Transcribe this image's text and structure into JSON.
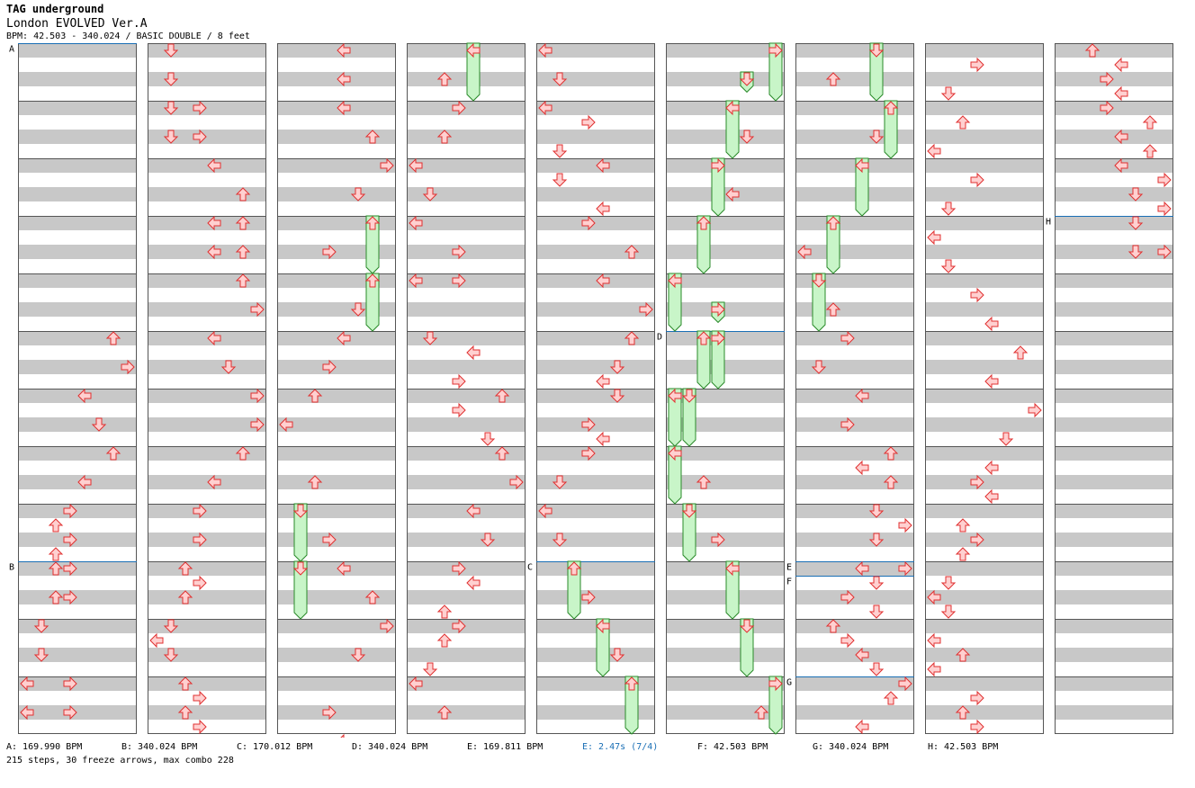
{
  "header": {
    "artist": "TAG underground",
    "title": "London EVOLVED Ver.A",
    "info": "BPM: 42.503 - 340.024 / BASIC DOUBLE / 8 feet"
  },
  "legend": [
    {
      "text": "A: 169.990 BPM",
      "highlight": false
    },
    {
      "text": "B: 340.024 BPM",
      "highlight": false
    },
    {
      "text": "C: 170.012 BPM",
      "highlight": false
    },
    {
      "text": "D: 340.024 BPM",
      "highlight": false
    },
    {
      "text": "E: 169.811 BPM",
      "highlight": false
    },
    {
      "text": "E: 2.47s (7/4)",
      "highlight": true
    },
    {
      "text": "F: 42.503 BPM",
      "highlight": false
    },
    {
      "text": "G: 340.024 BPM",
      "highlight": false
    },
    {
      "text": "H: 42.503 BPM",
      "highlight": false
    }
  ],
  "summary": "215 steps, 30 freeze arrows, max combo 228",
  "colors": {
    "band": "#c8c8c8",
    "border": "#555555",
    "marker": "#1a6fb5",
    "arrow_fill": "#ffd0d0",
    "arrow_stroke": "#e03030",
    "freeze_fill": "#c8f5c8",
    "freeze_stroke": "#2a8a2a"
  },
  "chart": {
    "columns": 9,
    "measures_per_column": 12,
    "lanes": [
      "L1",
      "D1",
      "U1",
      "R1",
      "L2",
      "D2",
      "U2",
      "R2"
    ],
    "markers": [
      {
        "label": "A",
        "col": 0,
        "pos": 0
      },
      {
        "label": "B",
        "col": 0,
        "pos": 9
      },
      {
        "label": "C",
        "col": 4,
        "pos": 9
      },
      {
        "label": "D",
        "col": 5,
        "pos": 5
      },
      {
        "label": "E",
        "col": 6,
        "pos": 9
      },
      {
        "label": "F",
        "col": 6,
        "pos": 9.25
      },
      {
        "label": "G",
        "col": 6,
        "pos": 11
      },
      {
        "label": "H",
        "col": 8,
        "pos": 3
      }
    ],
    "steps": [
      [
        0,
        5.0,
        6
      ],
      [
        0,
        5.5,
        7
      ],
      [
        0,
        6.0,
        4
      ],
      [
        0,
        6.5,
        5
      ],
      [
        0,
        7.0,
        6
      ],
      [
        0,
        7.5,
        4
      ],
      [
        0,
        8.0,
        3
      ],
      [
        0,
        8.25,
        2
      ],
      [
        0,
        8.5,
        3
      ],
      [
        0,
        8.75,
        2
      ],
      [
        0,
        9.0,
        2
      ],
      [
        0,
        9.0,
        3
      ],
      [
        0,
        9.5,
        2
      ],
      [
        0,
        9.5,
        3
      ],
      [
        0,
        10.0,
        1
      ],
      [
        0,
        10.5,
        1
      ],
      [
        0,
        11.0,
        0
      ],
      [
        0,
        11.0,
        3
      ],
      [
        0,
        11.5,
        0
      ],
      [
        0,
        11.5,
        3
      ],
      [
        1,
        0.0,
        1
      ],
      [
        1,
        0.5,
        1
      ],
      [
        1,
        1.0,
        1
      ],
      [
        1,
        1.0,
        3
      ],
      [
        1,
        1.5,
        1
      ],
      [
        1,
        1.5,
        3
      ],
      [
        1,
        2.0,
        4
      ],
      [
        1,
        2.5,
        6
      ],
      [
        1,
        3.0,
        4
      ],
      [
        1,
        3.0,
        6
      ],
      [
        1,
        3.5,
        4
      ],
      [
        1,
        3.5,
        6
      ],
      [
        1,
        4.0,
        6
      ],
      [
        1,
        4.5,
        7
      ],
      [
        1,
        5.0,
        4
      ],
      [
        1,
        5.5,
        5
      ],
      [
        1,
        6.0,
        7
      ],
      [
        1,
        6.5,
        7
      ],
      [
        1,
        7.0,
        6
      ],
      [
        1,
        7.5,
        4
      ],
      [
        1,
        8.0,
        3
      ],
      [
        1,
        8.5,
        3
      ],
      [
        1,
        9.0,
        2
      ],
      [
        1,
        9.25,
        3
      ],
      [
        1,
        9.5,
        2
      ],
      [
        1,
        10.0,
        1
      ],
      [
        1,
        10.25,
        0
      ],
      [
        1,
        10.5,
        1
      ],
      [
        1,
        11.0,
        2
      ],
      [
        1,
        11.25,
        3
      ],
      [
        1,
        11.5,
        2
      ],
      [
        1,
        11.75,
        3
      ],
      [
        2,
        0.0,
        4
      ],
      [
        2,
        0.5,
        4
      ],
      [
        2,
        1.0,
        4
      ],
      [
        2,
        1.5,
        6
      ],
      [
        2,
        2.0,
        7
      ],
      [
        2,
        2.5,
        5
      ],
      [
        2,
        3.5,
        3
      ],
      [
        2,
        4.5,
        5
      ],
      [
        2,
        5.0,
        4
      ],
      [
        2,
        5.5,
        3
      ],
      [
        2,
        6.0,
        2
      ],
      [
        2,
        6.5,
        0
      ],
      [
        2,
        7.5,
        2
      ],
      [
        2,
        8.5,
        3
      ],
      [
        2,
        9.0,
        4
      ],
      [
        2,
        9.5,
        6
      ],
      [
        2,
        10.0,
        7
      ],
      [
        2,
        10.5,
        5
      ],
      [
        2,
        11.5,
        3
      ],
      [
        3,
        0.5,
        2
      ],
      [
        3,
        1.0,
        3
      ],
      [
        3,
        1.5,
        2
      ],
      [
        3,
        2.0,
        0
      ],
      [
        3,
        2.5,
        1
      ],
      [
        3,
        3.0,
        0
      ],
      [
        3,
        3.5,
        3
      ],
      [
        3,
        4.0,
        0
      ],
      [
        3,
        4.0,
        3
      ],
      [
        3,
        5.0,
        1
      ],
      [
        3,
        5.25,
        4
      ],
      [
        3,
        5.75,
        3
      ],
      [
        3,
        6.0,
        6
      ],
      [
        3,
        6.25,
        3
      ],
      [
        3,
        6.75,
        5
      ],
      [
        3,
        7.0,
        6
      ],
      [
        3,
        7.5,
        7
      ],
      [
        3,
        8.0,
        4
      ],
      [
        3,
        8.5,
        5
      ],
      [
        3,
        9.0,
        3
      ],
      [
        3,
        9.25,
        4
      ],
      [
        3,
        9.75,
        2
      ],
      [
        3,
        10.0,
        3
      ],
      [
        3,
        10.25,
        2
      ],
      [
        3,
        10.75,
        1
      ],
      [
        3,
        11.0,
        0
      ],
      [
        3,
        11.5,
        2
      ],
      [
        4,
        0.0,
        0
      ],
      [
        4,
        0.5,
        1
      ],
      [
        4,
        1.0,
        0
      ],
      [
        4,
        1.25,
        3
      ],
      [
        4,
        1.75,
        1
      ],
      [
        4,
        2.0,
        4
      ],
      [
        4,
        2.25,
        1
      ],
      [
        4,
        2.75,
        4
      ],
      [
        4,
        3.0,
        3
      ],
      [
        4,
        3.5,
        6
      ],
      [
        4,
        4.0,
        4
      ],
      [
        4,
        4.5,
        7
      ],
      [
        4,
        5.0,
        6
      ],
      [
        4,
        5.5,
        5
      ],
      [
        4,
        5.75,
        4
      ],
      [
        4,
        6.0,
        5
      ],
      [
        4,
        6.5,
        3
      ],
      [
        4,
        6.75,
        4
      ],
      [
        4,
        7.0,
        3
      ],
      [
        4,
        7.5,
        1
      ],
      [
        4,
        8.0,
        0
      ],
      [
        4,
        8.5,
        1
      ],
      [
        4,
        9.5,
        3
      ],
      [
        4,
        10.5,
        5
      ],
      [
        5,
        1.5,
        5
      ],
      [
        5,
        2.5,
        4
      ],
      [
        5,
        5.0,
        3
      ],
      [
        5,
        7.5,
        2
      ],
      [
        5,
        8.5,
        3
      ],
      [
        5,
        11.5,
        6
      ],
      [
        6,
        0.5,
        2
      ],
      [
        6,
        1.5,
        5
      ],
      [
        6,
        3.5,
        0
      ],
      [
        6,
        4.5,
        2
      ],
      [
        6,
        5.0,
        3
      ],
      [
        6,
        5.5,
        1
      ],
      [
        6,
        6.0,
        4
      ],
      [
        6,
        6.5,
        3
      ],
      [
        6,
        7.0,
        6
      ],
      [
        6,
        7.25,
        4
      ],
      [
        6,
        7.5,
        6
      ],
      [
        6,
        8.0,
        5
      ],
      [
        6,
        8.25,
        7
      ],
      [
        6,
        8.5,
        5
      ],
      [
        6,
        9.0,
        4
      ],
      [
        6,
        9.0,
        7
      ],
      [
        6,
        9.25,
        5
      ],
      [
        6,
        9.5,
        3
      ],
      [
        6,
        9.75,
        5
      ],
      [
        6,
        10.0,
        2
      ],
      [
        6,
        10.25,
        3
      ],
      [
        6,
        10.5,
        4
      ],
      [
        6,
        10.75,
        5
      ],
      [
        6,
        11.0,
        7
      ],
      [
        6,
        11.25,
        6
      ],
      [
        6,
        11.75,
        4
      ],
      [
        7,
        0.25,
        3
      ],
      [
        7,
        0.75,
        1
      ],
      [
        7,
        1.25,
        2
      ],
      [
        7,
        1.75,
        0
      ],
      [
        7,
        2.25,
        3
      ],
      [
        7,
        2.75,
        1
      ],
      [
        7,
        3.25,
        0
      ],
      [
        7,
        3.75,
        1
      ],
      [
        7,
        4.25,
        3
      ],
      [
        7,
        4.75,
        4
      ],
      [
        7,
        5.25,
        6
      ],
      [
        7,
        5.75,
        4
      ],
      [
        7,
        6.25,
        7
      ],
      [
        7,
        6.75,
        5
      ],
      [
        7,
        7.25,
        4
      ],
      [
        7,
        7.5,
        3
      ],
      [
        7,
        7.75,
        4
      ],
      [
        7,
        8.25,
        2
      ],
      [
        7,
        8.5,
        3
      ],
      [
        7,
        8.75,
        2
      ],
      [
        7,
        9.25,
        1
      ],
      [
        7,
        9.5,
        0
      ],
      [
        7,
        9.75,
        1
      ],
      [
        7,
        10.25,
        0
      ],
      [
        7,
        10.75,
        0
      ],
      [
        7,
        10.5,
        2
      ],
      [
        7,
        11.25,
        3
      ],
      [
        7,
        11.5,
        2
      ],
      [
        7,
        11.75,
        3
      ],
      [
        8,
        0.0,
        2
      ],
      [
        8,
        0.25,
        4
      ],
      [
        8,
        0.5,
        3
      ],
      [
        8,
        0.75,
        4
      ],
      [
        8,
        1.0,
        3
      ],
      [
        8,
        1.25,
        6
      ],
      [
        8,
        1.5,
        4
      ],
      [
        8,
        1.75,
        6
      ],
      [
        8,
        2.0,
        4
      ],
      [
        8,
        2.25,
        7
      ],
      [
        8,
        2.5,
        5
      ],
      [
        8,
        2.75,
        7
      ],
      [
        8,
        3.0,
        5
      ],
      [
        8,
        3.5,
        5
      ],
      [
        8,
        3.5,
        7
      ]
    ],
    "freezes": [
      [
        2,
        3.0,
        4.0,
        6
      ],
      [
        2,
        4.0,
        5.0,
        6
      ],
      [
        2,
        8.0,
        9.0,
        1
      ],
      [
        2,
        9.0,
        10.0,
        1
      ],
      [
        2,
        12.0,
        12.0,
        4
      ],
      [
        3,
        0.0,
        1.0,
        4
      ],
      [
        4,
        9.0,
        10.0,
        2
      ],
      [
        4,
        10.0,
        11.0,
        4
      ],
      [
        4,
        11.0,
        12.0,
        6
      ],
      [
        5,
        0.0,
        1.0,
        7
      ],
      [
        5,
        0.5,
        0.85,
        5
      ],
      [
        5,
        1.0,
        2.0,
        4
      ],
      [
        5,
        2.0,
        3.0,
        3
      ],
      [
        5,
        3.0,
        4.0,
        2
      ],
      [
        5,
        4.0,
        5.0,
        0
      ],
      [
        5,
        4.5,
        4.85,
        3
      ],
      [
        5,
        5.0,
        6.0,
        2
      ],
      [
        5,
        5.0,
        6.0,
        3
      ],
      [
        5,
        6.0,
        7.0,
        0
      ],
      [
        5,
        6.0,
        7.0,
        1
      ],
      [
        5,
        7.0,
        8.0,
        0
      ],
      [
        5,
        8.0,
        9.0,
        1
      ],
      [
        5,
        9.0,
        10.0,
        4
      ],
      [
        5,
        10.0,
        11.0,
        5
      ],
      [
        5,
        11.0,
        12.0,
        7
      ],
      [
        6,
        0.0,
        1.0,
        5
      ],
      [
        6,
        1.0,
        2.0,
        6
      ],
      [
        6,
        2.0,
        3.0,
        4
      ],
      [
        6,
        3.0,
        4.0,
        2
      ],
      [
        6,
        4.0,
        5.0,
        1
      ]
    ]
  }
}
